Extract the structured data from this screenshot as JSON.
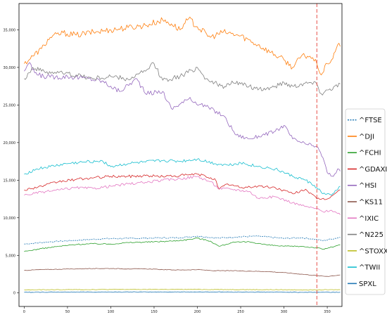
{
  "chart_data": {
    "type": "line",
    "title": "",
    "xlabel": "",
    "ylabel": "",
    "xlim": [
      -6,
      367
    ],
    "ylim": [
      -1800,
      38500
    ],
    "x_ticks": [
      0,
      50,
      100,
      150,
      200,
      250,
      300,
      350
    ],
    "x_tick_labels": [
      "0",
      "50",
      "100",
      "150",
      "200",
      "250",
      "300",
      "350"
    ],
    "y_ticks": [
      0,
      5000,
      10000,
      15000,
      20000,
      25000,
      30000,
      35000
    ],
    "y_tick_labels": [
      "0",
      "5,000",
      "10,000",
      "15,000",
      "20,000",
      "25,000",
      "30,000",
      "35,000"
    ],
    "grid": false,
    "legend_position": "right",
    "vline": {
      "x": 338,
      "color": "#e8524a",
      "style": "dashed"
    },
    "series": [
      {
        "name": "^FTSE",
        "color": "#1f77b4",
        "dashed": true,
        "points": [
          [
            0,
            6500
          ],
          [
            30,
            6800
          ],
          [
            60,
            7000
          ],
          [
            90,
            7200
          ],
          [
            120,
            7250
          ],
          [
            150,
            7300
          ],
          [
            180,
            7350
          ],
          [
            200,
            7550
          ],
          [
            225,
            7300
          ],
          [
            245,
            7450
          ],
          [
            270,
            7550
          ],
          [
            300,
            7250
          ],
          [
            320,
            7350
          ],
          [
            338,
            7100
          ],
          [
            345,
            6950
          ],
          [
            365,
            7400
          ]
        ]
      },
      {
        "name": "^DJI",
        "color": "#ff7f0e",
        "dashed": false,
        "points": [
          [
            0,
            30500
          ],
          [
            10,
            31500
          ],
          [
            20,
            32500
          ],
          [
            30,
            34000
          ],
          [
            45,
            34600
          ],
          [
            60,
            34300
          ],
          [
            80,
            34700
          ],
          [
            100,
            35000
          ],
          [
            120,
            35300
          ],
          [
            140,
            35600
          ],
          [
            160,
            36300
          ],
          [
            170,
            35800
          ],
          [
            180,
            35000
          ],
          [
            190,
            36500
          ],
          [
            200,
            35400
          ],
          [
            215,
            34000
          ],
          [
            230,
            34700
          ],
          [
            250,
            34200
          ],
          [
            270,
            33000
          ],
          [
            285,
            32000
          ],
          [
            300,
            31000
          ],
          [
            310,
            30000
          ],
          [
            320,
            31500
          ],
          [
            330,
            31500
          ],
          [
            338,
            30500
          ],
          [
            343,
            29000
          ],
          [
            350,
            30500
          ],
          [
            355,
            31000
          ],
          [
            362,
            33000
          ],
          [
            365,
            32800
          ]
        ]
      },
      {
        "name": "^FCHI",
        "color": "#2ca02c",
        "dashed": false,
        "points": [
          [
            0,
            5500
          ],
          [
            20,
            5900
          ],
          [
            40,
            6200
          ],
          [
            60,
            6450
          ],
          [
            80,
            6550
          ],
          [
            100,
            6500
          ],
          [
            120,
            6700
          ],
          [
            150,
            6800
          ],
          [
            170,
            6900
          ],
          [
            190,
            7100
          ],
          [
            200,
            7300
          ],
          [
            215,
            6900
          ],
          [
            225,
            6200
          ],
          [
            240,
            6700
          ],
          [
            260,
            6800
          ],
          [
            280,
            6400
          ],
          [
            300,
            6200
          ],
          [
            320,
            6200
          ],
          [
            338,
            6000
          ],
          [
            345,
            5800
          ],
          [
            365,
            6400
          ]
        ]
      },
      {
        "name": "^GDAXI",
        "color": "#d62728",
        "dashed": false,
        "points": [
          [
            0,
            13700
          ],
          [
            20,
            14200
          ],
          [
            40,
            14800
          ],
          [
            60,
            15100
          ],
          [
            80,
            15300
          ],
          [
            100,
            15500
          ],
          [
            120,
            15500
          ],
          [
            140,
            15600
          ],
          [
            160,
            15500
          ],
          [
            180,
            15600
          ],
          [
            200,
            15800
          ],
          [
            220,
            15200
          ],
          [
            225,
            13800
          ],
          [
            235,
            14500
          ],
          [
            250,
            14000
          ],
          [
            270,
            14200
          ],
          [
            290,
            14000
          ],
          [
            310,
            13200
          ],
          [
            325,
            13800
          ],
          [
            338,
            12500
          ],
          [
            350,
            12500
          ],
          [
            365,
            13700
          ]
        ]
      },
      {
        "name": "^HSI",
        "color": "#9467bd",
        "dashed": false,
        "points": [
          [
            0,
            29500
          ],
          [
            5,
            30500
          ],
          [
            15,
            29000
          ],
          [
            30,
            28700
          ],
          [
            50,
            28800
          ],
          [
            70,
            28600
          ],
          [
            90,
            28200
          ],
          [
            100,
            27500
          ],
          [
            110,
            26800
          ],
          [
            130,
            28500
          ],
          [
            140,
            26500
          ],
          [
            160,
            26800
          ],
          [
            170,
            24500
          ],
          [
            190,
            25800
          ],
          [
            210,
            24800
          ],
          [
            230,
            23600
          ],
          [
            245,
            21000
          ],
          [
            260,
            20500
          ],
          [
            275,
            21000
          ],
          [
            290,
            21500
          ],
          [
            300,
            22300
          ],
          [
            310,
            20500
          ],
          [
            325,
            19800
          ],
          [
            338,
            19500
          ],
          [
            345,
            18000
          ],
          [
            350,
            16000
          ],
          [
            357,
            15500
          ],
          [
            362,
            16500
          ],
          [
            365,
            16200
          ]
        ]
      },
      {
        "name": "^KS11",
        "color": "#8c564b",
        "dashed": false,
        "points": [
          [
            0,
            3000
          ],
          [
            20,
            3100
          ],
          [
            40,
            3150
          ],
          [
            60,
            3200
          ],
          [
            80,
            3250
          ],
          [
            100,
            3250
          ],
          [
            120,
            3200
          ],
          [
            140,
            3200
          ],
          [
            160,
            3100
          ],
          [
            180,
            3050
          ],
          [
            200,
            3100
          ],
          [
            220,
            2950
          ],
          [
            240,
            2950
          ],
          [
            260,
            2900
          ],
          [
            280,
            2850
          ],
          [
            300,
            2700
          ],
          [
            320,
            2500
          ],
          [
            338,
            2300
          ],
          [
            350,
            2200
          ],
          [
            365,
            2400
          ]
        ]
      },
      {
        "name": "^IXIC",
        "color": "#e377c2",
        "dashed": false,
        "points": [
          [
            0,
            13000
          ],
          [
            20,
            13400
          ],
          [
            40,
            13700
          ],
          [
            60,
            14000
          ],
          [
            80,
            13900
          ],
          [
            100,
            14200
          ],
          [
            120,
            14500
          ],
          [
            140,
            14700
          ],
          [
            160,
            15000
          ],
          [
            180,
            15200
          ],
          [
            200,
            15500
          ],
          [
            215,
            14800
          ],
          [
            225,
            13900
          ],
          [
            240,
            13800
          ],
          [
            260,
            13500
          ],
          [
            270,
            12600
          ],
          [
            290,
            12800
          ],
          [
            310,
            12000
          ],
          [
            325,
            11500
          ],
          [
            338,
            11200
          ],
          [
            345,
            10800
          ],
          [
            355,
            11000
          ],
          [
            365,
            10400
          ]
        ]
      },
      {
        "name": "^N225",
        "color": "#7f7f7f",
        "dashed": false,
        "points": [
          [
            0,
            28500
          ],
          [
            10,
            30000
          ],
          [
            20,
            29500
          ],
          [
            40,
            29300
          ],
          [
            60,
            29000
          ],
          [
            80,
            28500
          ],
          [
            100,
            28800
          ],
          [
            120,
            28400
          ],
          [
            140,
            29500
          ],
          [
            150,
            30500
          ],
          [
            160,
            28300
          ],
          [
            180,
            28800
          ],
          [
            200,
            30000
          ],
          [
            210,
            28500
          ],
          [
            220,
            28000
          ],
          [
            230,
            27200
          ],
          [
            240,
            28200
          ],
          [
            250,
            27800
          ],
          [
            260,
            27500
          ],
          [
            270,
            27000
          ],
          [
            280,
            27200
          ],
          [
            290,
            27500
          ],
          [
            300,
            28000
          ],
          [
            310,
            27500
          ],
          [
            320,
            27800
          ],
          [
            330,
            28000
          ],
          [
            338,
            27800
          ],
          [
            343,
            26500
          ],
          [
            350,
            27000
          ],
          [
            365,
            27800
          ]
        ]
      },
      {
        "name": "^STOXX",
        "color": "#bcbd22",
        "dashed": false,
        "points": [
          [
            0,
            400
          ],
          [
            50,
            440
          ],
          [
            100,
            460
          ],
          [
            150,
            470
          ],
          [
            200,
            470
          ],
          [
            250,
            450
          ],
          [
            300,
            420
          ],
          [
            338,
            400
          ],
          [
            365,
            430
          ]
        ]
      },
      {
        "name": "^TWII",
        "color": "#17becf",
        "dashed": false,
        "points": [
          [
            0,
            15800
          ],
          [
            15,
            16500
          ],
          [
            30,
            16800
          ],
          [
            50,
            17200
          ],
          [
            70,
            17400
          ],
          [
            90,
            17600
          ],
          [
            100,
            16800
          ],
          [
            120,
            17200
          ],
          [
            140,
            17400
          ],
          [
            160,
            17600
          ],
          [
            180,
            17500
          ],
          [
            200,
            17800
          ],
          [
            220,
            17200
          ],
          [
            235,
            17000
          ],
          [
            250,
            17300
          ],
          [
            270,
            16800
          ],
          [
            290,
            16500
          ],
          [
            310,
            15500
          ],
          [
            325,
            15000
          ],
          [
            338,
            14000
          ],
          [
            345,
            13200
          ],
          [
            355,
            13000
          ],
          [
            365,
            14200
          ]
        ]
      },
      {
        "name": "SPXL",
        "color": "#1f77b4",
        "dashed": false,
        "points": [
          [
            0,
            90
          ],
          [
            50,
            110
          ],
          [
            100,
            120
          ],
          [
            150,
            125
          ],
          [
            200,
            130
          ],
          [
            250,
            115
          ],
          [
            300,
            100
          ],
          [
            338,
            85
          ],
          [
            365,
            95
          ]
        ]
      }
    ]
  }
}
